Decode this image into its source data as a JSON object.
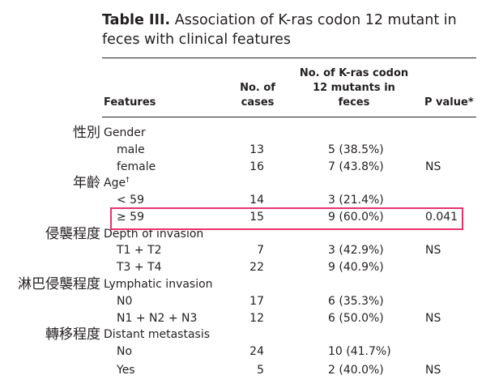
{
  "caption": {
    "bold": "Table III.",
    "text": " Association of K-ras codon 12 mutant in feces with clinical features"
  },
  "headers": {
    "features": "Features",
    "cases_line1": "No. of",
    "cases_line2": "cases",
    "mutants_line1": "No. of K-ras codon",
    "mutants_line2": "12 mutants in",
    "mutants_line3": "feces",
    "pvalue": "P value*"
  },
  "annotations": {
    "gender": "性別",
    "age": "年齡",
    "depth": "侵襲程度",
    "lymphatic": "淋巴侵襲程度",
    "distant": "轉移程度"
  },
  "groups": {
    "gender": "Gender",
    "age": "Age",
    "age_sup": "†",
    "depth": "Depth of invasion",
    "lymphatic": "Lymphatic invasion",
    "distant": "Distant metastasis"
  },
  "rows": [
    {
      "label": "male",
      "cases": "13",
      "mutants": "5 (38.5%)",
      "p": ""
    },
    {
      "label": "female",
      "cases": "16",
      "mutants": "7 (43.8%)",
      "p": "NS"
    },
    {
      "label": "< 59",
      "cases": "14",
      "mutants": "3 (21.4%)",
      "p": ""
    },
    {
      "label": "≥ 59",
      "cases": "15",
      "mutants": "9 (60.0%)",
      "p": "0.041"
    },
    {
      "label": "T1 + T2",
      "cases": "7",
      "mutants": "3 (42.9%)",
      "p": "NS"
    },
    {
      "label": "T3 + T4",
      "cases": "22",
      "mutants": "9 (40.9%)",
      "p": ""
    },
    {
      "label": "N0",
      "cases": "17",
      "mutants": "6 (35.3%)",
      "p": ""
    },
    {
      "label": "N1 + N2 + N3",
      "cases": "12",
      "mutants": "6 (50.0%)",
      "p": "NS"
    },
    {
      "label": "No",
      "cases": "24",
      "mutants": "10 (41.7%)",
      "p": ""
    },
    {
      "label": "Yes",
      "cases": "5",
      "mutants": "2 (40.0%)",
      "p": "NS"
    }
  ],
  "highlight_color": "#e8336c"
}
